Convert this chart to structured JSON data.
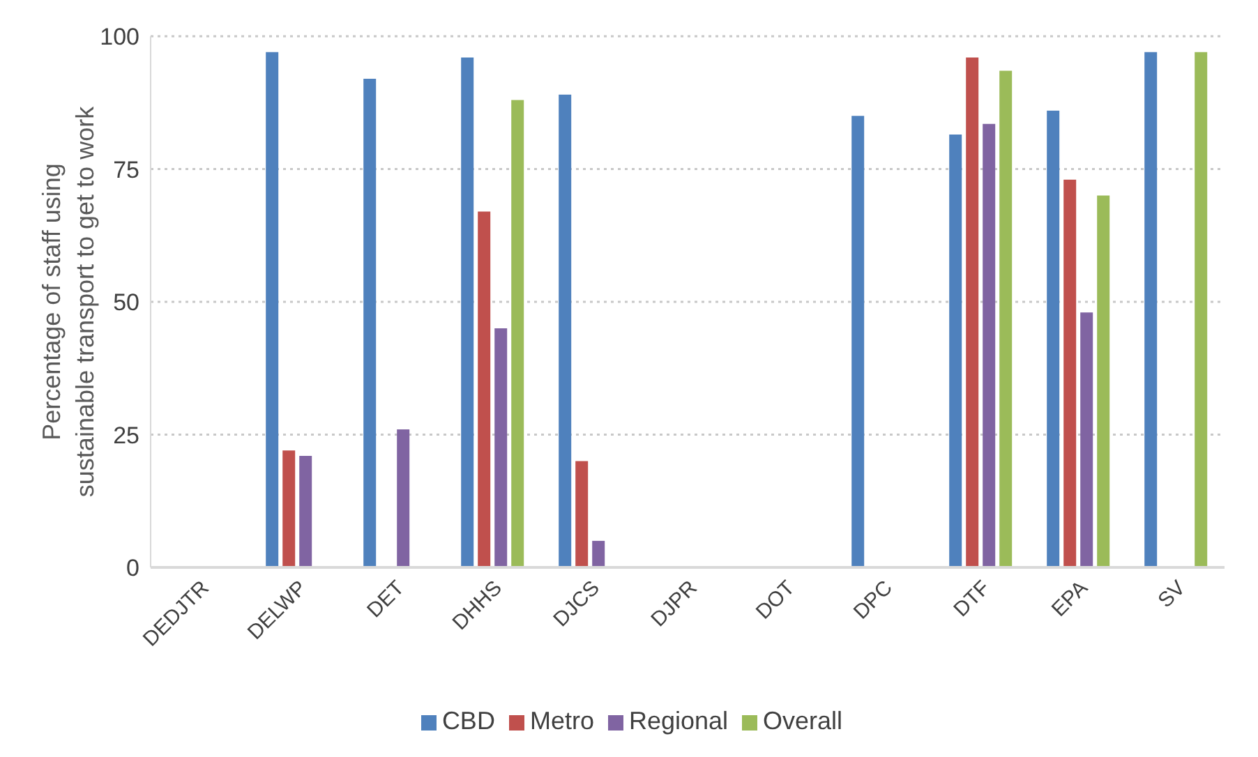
{
  "chart_data": {
    "type": "bar",
    "ylabel": "Percentage of staff using sustainable transport to get to work",
    "categories": [
      "DEDJTR",
      "DELWP",
      "DET",
      "DHHS",
      "DJCS",
      "DJPR",
      "DOT",
      "DPC",
      "DTF",
      "EPA",
      "SV"
    ],
    "series": [
      {
        "name": "CBD",
        "color": "#4f81bd",
        "values": [
          null,
          97,
          92,
          96,
          89,
          null,
          null,
          85,
          81.5,
          86,
          97
        ]
      },
      {
        "name": "Metro",
        "color": "#c0504d",
        "values": [
          null,
          22,
          null,
          67,
          20,
          null,
          null,
          null,
          96,
          73,
          null
        ]
      },
      {
        "name": "Regional",
        "color": "#8064a2",
        "values": [
          null,
          21,
          26,
          45,
          5,
          null,
          null,
          null,
          83.5,
          48,
          null
        ]
      },
      {
        "name": "Overall",
        "color": "#9bbb59",
        "values": [
          null,
          null,
          null,
          88,
          null,
          null,
          null,
          null,
          93.5,
          70,
          97
        ]
      }
    ],
    "ylim": [
      0,
      100
    ],
    "yticks": [
      0,
      25,
      50,
      75,
      100
    ],
    "grid": "y",
    "legend": "bottom"
  }
}
